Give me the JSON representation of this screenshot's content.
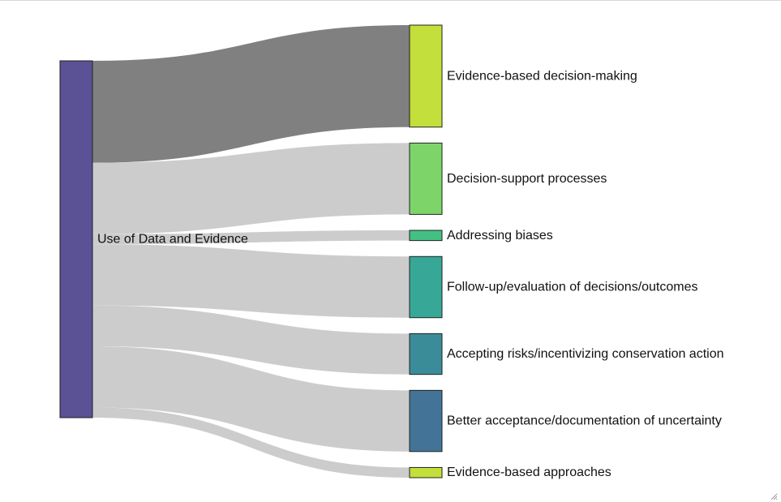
{
  "chart_data": {
    "type": "sankey",
    "source": {
      "name": "Use of Data and Evidence",
      "color": "#5b5195"
    },
    "targets": [
      {
        "name": "Evidence-based decision-making",
        "value": 25,
        "color": "#c2df3b",
        "link_color": "#808080"
      },
      {
        "name": "Decision-support processes",
        "value": 17.5,
        "color": "#7dd56a",
        "link_color": "#cccccc"
      },
      {
        "name": "Addressing biases",
        "value": 2.5,
        "color": "#45c084",
        "link_color": "#cccccc"
      },
      {
        "name": "Follow-up/evaluation of decisions/outcomes",
        "value": 15,
        "color": "#37a897",
        "link_color": "#cccccc"
      },
      {
        "name": "Accepting risks/incentivizing conservation action",
        "value": 10,
        "color": "#3a8d98",
        "link_color": "#cccccc"
      },
      {
        "name": "Better acceptance/documentation of uncertainty",
        "value": 15,
        "color": "#437497",
        "link_color": "#cccccc"
      },
      {
        "name": "Evidence-based approaches",
        "value": 2.5,
        "color": "#c2df3b",
        "link_color": "#cccccc"
      }
    ]
  }
}
